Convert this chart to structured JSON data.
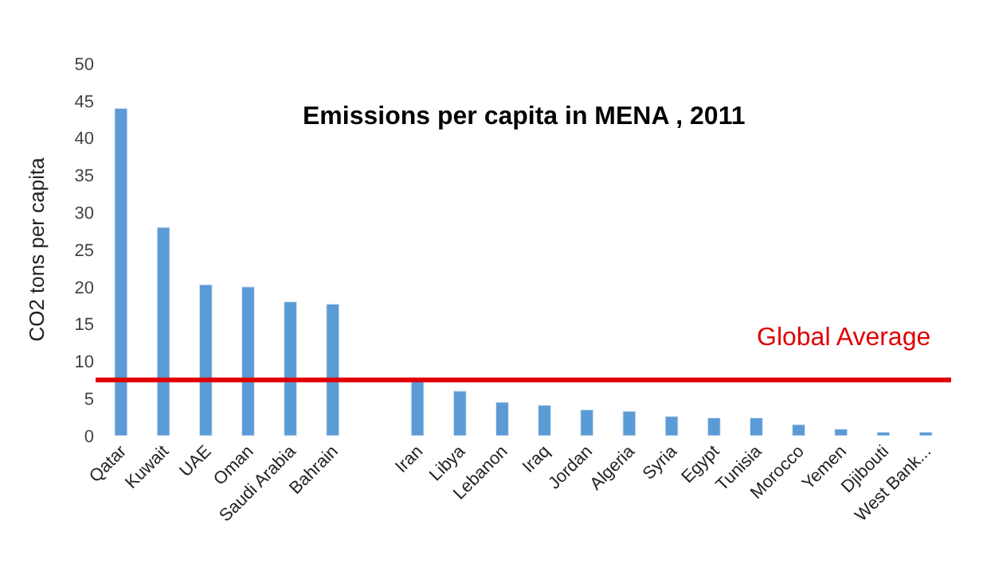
{
  "chart_data": {
    "type": "bar",
    "title": "Emissions per capita in MENA , 2011",
    "ylabel": "CO2 tons per capita",
    "categories": [
      "Qatar",
      "Kuwait",
      "UAE",
      "Oman",
      "Saudi Arabia",
      "Bahrain",
      null,
      "Iran",
      "Libya",
      "Lebanon",
      "Iraq",
      "Jordan",
      "Algeria",
      "Syria",
      "Egypt",
      "Tunisia",
      "Morocco",
      "Yemen",
      "Djibouti",
      "West Bank..."
    ],
    "values": [
      44,
      28,
      20.3,
      20,
      18,
      17.7,
      null,
      7.5,
      6,
      4.5,
      4.1,
      3.5,
      3.3,
      2.6,
      2.4,
      2.4,
      1.5,
      0.9,
      0.5,
      0.5
    ],
    "color": "#5b9bd5",
    "ylim": [
      0,
      50
    ],
    "yticks": [
      0,
      5,
      10,
      15,
      20,
      25,
      30,
      35,
      40,
      45,
      50
    ],
    "ref_lines": [
      {
        "axis": "y",
        "value": 7.5,
        "label": "Global Average",
        "color": "#e00000",
        "line_style": "solid"
      }
    ]
  }
}
